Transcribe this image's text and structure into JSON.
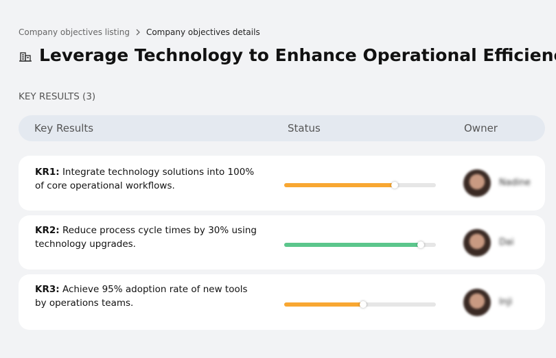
{
  "breadcrumb": {
    "parent": "Company objectives listing",
    "current": "Company objectives details"
  },
  "title": "Leverage Technology to Enhance Operational Efficiency",
  "section_label": "KEY RESULTS (3)",
  "table": {
    "columns": [
      "Key Results",
      "Status",
      "Owner"
    ],
    "rows": [
      {
        "id": "KR1:",
        "text": "Integrate technology solutions into 100% of core operational workflows.",
        "progress": 73,
        "color": "#f8a732",
        "owner": "Nadine"
      },
      {
        "id": "KR2:",
        "text": "Reduce process cycle times by 30% using technology upgrades.",
        "progress": 90,
        "color": "#5cc68c",
        "owner": "Dai"
      },
      {
        "id": "KR3:",
        "text": "Achieve 95% adoption rate of new tools by operations teams.",
        "progress": 52,
        "color": "#f8a732",
        "owner": "Inji"
      }
    ]
  }
}
